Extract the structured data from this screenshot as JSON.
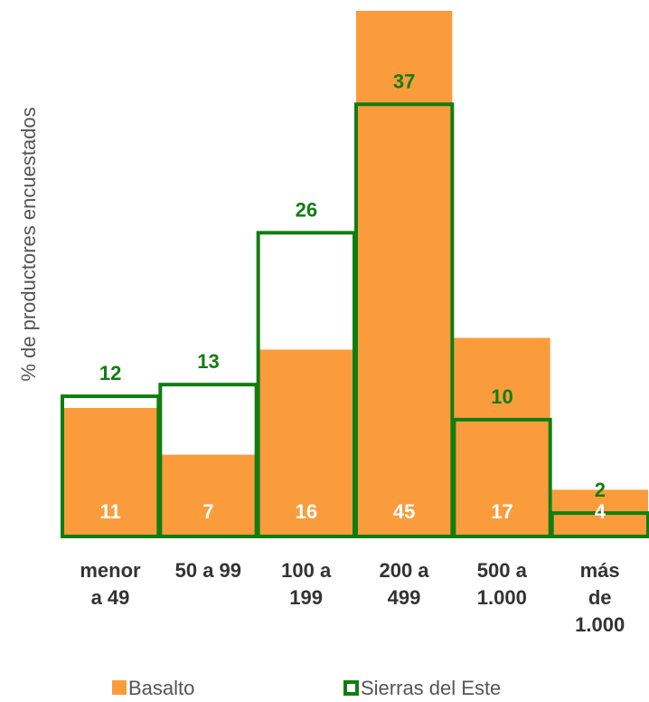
{
  "chart_data": {
    "type": "bar",
    "y_label": "% de productores encuestados",
    "categories": [
      "menor\na 49",
      "50 a 99",
      "100 a\n199",
      "200 a\n499",
      "500 a\n1.000",
      "más\nde\n1.000"
    ],
    "series": [
      {
        "name": "Basalto",
        "color": "#fa9c3c",
        "values": [
          11,
          7,
          16,
          45,
          17,
          4
        ]
      },
      {
        "name": "Sierras del Este",
        "color": "#117d11",
        "values": [
          12,
          13,
          26,
          37,
          10,
          2
        ]
      }
    ],
    "ylim": [
      0,
      45
    ]
  }
}
